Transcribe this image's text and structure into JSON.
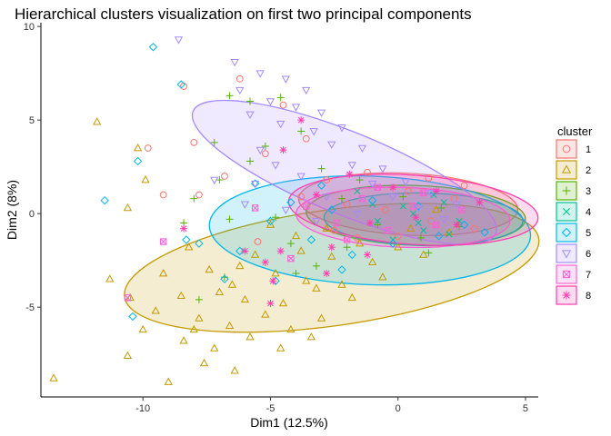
{
  "chart_data": {
    "type": "scatter",
    "title": "Hierarchical clusters visualization on first two principal components",
    "xlabel": "Dim1 (12.5%)",
    "ylabel": "Dim2 (8%)",
    "xlim": [
      -14,
      5.5
    ],
    "ylim": [
      -9.8,
      10.2
    ],
    "x_ticks": [
      -10,
      -5,
      0,
      5
    ],
    "y_ticks": [
      -5,
      0,
      5,
      10
    ],
    "x_tick_labels": [
      "-10",
      "-5",
      "0",
      "5"
    ],
    "y_tick_labels": [
      "-5",
      "0",
      "5",
      "10"
    ],
    "grid": false,
    "legend": {
      "title": "cluster",
      "position": "right"
    },
    "series": [
      {
        "name": "1",
        "color": "#F8766D",
        "marker": "circle",
        "ellipse": {
          "cx": 0.4,
          "cy": 0.5,
          "rx": 4.3,
          "ry": 1.65,
          "angle": -3
        },
        "points": [
          [
            -8.4,
            6.8
          ],
          [
            -6.2,
            7.2
          ],
          [
            -8.0,
            3.8
          ],
          [
            -7.8,
            1.0
          ],
          [
            -5.2,
            3.2
          ],
          [
            -4.5,
            5.8
          ],
          [
            -3.6,
            4.0
          ],
          [
            -2.8,
            1.8
          ],
          [
            -2.0,
            0.5
          ],
          [
            -1.2,
            2.2
          ],
          [
            -0.5,
            0.2
          ],
          [
            0.4,
            1.2
          ],
          [
            1.3,
            -0.4
          ],
          [
            2.2,
            0.8
          ],
          [
            3.0,
            -0.8
          ],
          [
            -2.5,
            -0.9
          ],
          [
            -1.6,
            -1.3
          ],
          [
            0.0,
            -1.2
          ],
          [
            1.2,
            1.9
          ],
          [
            2.6,
            1.5
          ],
          [
            -3.8,
            0.9
          ],
          [
            -9.2,
            1.0
          ],
          [
            -9.8,
            3.5
          ],
          [
            -6.8,
            2.0
          ],
          [
            -5.5,
            -1.5
          ]
        ]
      },
      {
        "name": "2",
        "color": "#C49A00",
        "marker": "triangle",
        "ellipse": {
          "cx": -2.6,
          "cy": -2.9,
          "rx": 8.2,
          "ry": 3.1,
          "angle": 8
        },
        "points": [
          [
            -11.8,
            4.9
          ],
          [
            -10.2,
            3.5
          ],
          [
            -9.9,
            1.8
          ],
          [
            -10.6,
            0.3
          ],
          [
            -11.3,
            -3.5
          ],
          [
            -10.5,
            -4.5
          ],
          [
            -10.6,
            -7.6
          ],
          [
            -13.5,
            -8.8
          ],
          [
            -9.0,
            -9.0
          ],
          [
            -8.4,
            -6.8
          ],
          [
            -9.5,
            -5.2
          ],
          [
            -8.5,
            -4.4
          ],
          [
            -7.8,
            -5.6
          ],
          [
            -7.2,
            -7.2
          ],
          [
            -6.6,
            -6.0
          ],
          [
            -6.5,
            -3.8
          ],
          [
            -6.0,
            -4.6
          ],
          [
            -5.6,
            -2.2
          ],
          [
            -5.2,
            -5.4
          ],
          [
            -4.8,
            -3.2
          ],
          [
            -4.5,
            -4.8
          ],
          [
            -4.0,
            -1.2
          ],
          [
            -3.6,
            -3.6
          ],
          [
            -3.2,
            -4.0
          ],
          [
            -3.0,
            -5.6
          ],
          [
            -2.6,
            -2.3
          ],
          [
            -2.2,
            -3.8
          ],
          [
            -1.8,
            -4.5
          ],
          [
            -1.5,
            -1.6
          ],
          [
            -1.0,
            -2.6
          ],
          [
            -0.6,
            -3.4
          ],
          [
            0.0,
            -1.8
          ],
          [
            0.5,
            -0.8
          ],
          [
            1.0,
            -2.2
          ],
          [
            1.5,
            0.2
          ],
          [
            2.0,
            -1.0
          ],
          [
            -7.0,
            -4.2
          ],
          [
            -8.0,
            -6.2
          ],
          [
            -5.8,
            -6.6
          ],
          [
            -6.2,
            -2.8
          ],
          [
            -4.2,
            -6.2
          ],
          [
            -3.8,
            -2.0
          ],
          [
            -2.8,
            -0.8
          ],
          [
            -7.4,
            -3.0
          ],
          [
            -8.2,
            -1.8
          ],
          [
            -5.0,
            -0.6
          ],
          [
            -9.2,
            -3.2
          ],
          [
            -10.0,
            -6.2
          ],
          [
            -7.6,
            -8.0
          ],
          [
            -6.4,
            -8.4
          ],
          [
            -4.6,
            -7.2
          ],
          [
            -3.4,
            -6.6
          ]
        ]
      },
      {
        "name": "3",
        "color": "#53B400",
        "marker": "plus",
        "ellipse": {
          "cx": 0.7,
          "cy": -0.1,
          "rx": 4.3,
          "ry": 1.6,
          "angle": -2
        },
        "points": [
          [
            -6.6,
            6.3
          ],
          [
            -5.8,
            6.0
          ],
          [
            -7.2,
            3.8
          ],
          [
            -7.0,
            1.8
          ],
          [
            -8.0,
            0.8
          ],
          [
            -6.6,
            -0.3
          ],
          [
            -5.8,
            2.8
          ],
          [
            -5.2,
            3.6
          ],
          [
            -4.6,
            6.2
          ],
          [
            -3.8,
            4.4
          ],
          [
            -3.0,
            2.4
          ],
          [
            -2.2,
            0.8
          ],
          [
            -1.5,
            1.8
          ],
          [
            -0.8,
            -0.6
          ],
          [
            0.2,
            0.9
          ],
          [
            0.9,
            -1.3
          ],
          [
            1.7,
            0.3
          ],
          [
            2.4,
            -0.7
          ],
          [
            -4.0,
            -3.2
          ],
          [
            -4.2,
            -1.6
          ],
          [
            -3.2,
            -2.8
          ],
          [
            -7.8,
            -4.6
          ],
          [
            -6.8,
            -3.4
          ],
          [
            -2.0,
            -1.8
          ],
          [
            1.2,
            -2.1
          ],
          [
            -8.4,
            -0.5
          ],
          [
            -4.8,
            -0.2
          ]
        ]
      },
      {
        "name": "4",
        "color": "#00C094",
        "marker": "x",
        "ellipse": {
          "cx": 1.0,
          "cy": -0.3,
          "rx": 3.9,
          "ry": 1.4,
          "angle": -1
        },
        "points": [
          [
            -1.6,
            1.2
          ],
          [
            -0.8,
            -0.4
          ],
          [
            0.2,
            0.4
          ],
          [
            1.0,
            -0.9
          ],
          [
            1.8,
            0.6
          ],
          [
            2.4,
            -0.4
          ],
          [
            -0.2,
            -1.4
          ],
          [
            1.4,
            1.0
          ],
          [
            0.6,
            0.0
          ],
          [
            2.0,
            -1.1
          ],
          [
            -1.0,
            0.5
          ],
          [
            0.8,
            -0.5
          ]
        ]
      },
      {
        "name": "5",
        "color": "#00B6EB",
        "marker": "diamond",
        "ellipse": {
          "cx": -1.1,
          "cy": -0.9,
          "rx": 6.3,
          "ry": 2.9,
          "angle": -2
        },
        "points": [
          [
            -9.6,
            8.9
          ],
          [
            -8.5,
            6.9
          ],
          [
            -10.2,
            2.8
          ],
          [
            -11.5,
            0.7
          ],
          [
            -10.4,
            -5.5
          ],
          [
            -8.3,
            -1.4
          ],
          [
            -7.8,
            -1.6
          ],
          [
            -6.2,
            -2.0
          ],
          [
            -5.0,
            -0.4
          ],
          [
            -4.2,
            0.6
          ],
          [
            -3.4,
            -1.4
          ],
          [
            -2.6,
            0.2
          ],
          [
            -1.8,
            -2.2
          ],
          [
            -1.0,
            0.7
          ],
          [
            -0.2,
            -1.6
          ],
          [
            0.8,
            0.4
          ],
          [
            1.6,
            -1.2
          ],
          [
            2.6,
            -0.6
          ],
          [
            3.4,
            -1.0
          ],
          [
            -5.6,
            1.6
          ],
          [
            -3.0,
            1.5
          ],
          [
            -6.8,
            -3.5
          ],
          [
            -4.8,
            -3.6
          ],
          [
            -2.2,
            -3.0
          ]
        ]
      },
      {
        "name": "6",
        "color": "#A58AFF",
        "marker": "triangle-down",
        "ellipse": {
          "cx": -2.1,
          "cy": 2.2,
          "rx": 6.4,
          "ry": 2.2,
          "angle": -22
        },
        "points": [
          [
            -8.6,
            9.3
          ],
          [
            -6.4,
            8.1
          ],
          [
            -6.2,
            6.6
          ],
          [
            -5.8,
            5.3
          ],
          [
            -5.4,
            7.5
          ],
          [
            -5.0,
            6.0
          ],
          [
            -4.6,
            4.8
          ],
          [
            -4.4,
            7.2
          ],
          [
            -4.0,
            5.7
          ],
          [
            -3.6,
            6.6
          ],
          [
            -3.3,
            4.4
          ],
          [
            -3.0,
            5.4
          ],
          [
            -2.6,
            3.7
          ],
          [
            -2.2,
            4.6
          ],
          [
            -1.8,
            2.6
          ],
          [
            -1.4,
            3.5
          ],
          [
            -1.0,
            1.6
          ],
          [
            -0.6,
            2.4
          ],
          [
            -0.2,
            0.9
          ],
          [
            0.3,
            1.7
          ],
          [
            0.8,
            0.3
          ],
          [
            1.3,
            1.1
          ],
          [
            1.8,
            -0.3
          ],
          [
            2.3,
            0.5
          ],
          [
            -5.4,
            3.4
          ],
          [
            -4.8,
            2.6
          ],
          [
            -3.8,
            2.0
          ],
          [
            -2.8,
            0.9
          ],
          [
            -5.6,
            1.6
          ],
          [
            -6.0,
            0.5
          ],
          [
            -4.4,
            0.2
          ],
          [
            -3.2,
            -0.4
          ],
          [
            -7.2,
            1.8
          ],
          [
            -1.6,
            0.0
          ]
        ]
      },
      {
        "name": "7",
        "color": "#FB61D7",
        "marker": "square-x",
        "ellipse": {
          "cx": 0.2,
          "cy": -0.2,
          "rx": 4.2,
          "ry": 1.6,
          "angle": -2
        },
        "points": [
          [
            -10.6,
            -4.5
          ],
          [
            -9.2,
            -1.5
          ],
          [
            -5.6,
            0.3
          ],
          [
            -4.2,
            -2.4
          ],
          [
            -3.6,
            0.4
          ],
          [
            -2.4,
            -0.5
          ],
          [
            -1.4,
            0.8
          ],
          [
            -0.4,
            -0.9
          ],
          [
            0.6,
            0.4
          ],
          [
            1.5,
            -0.6
          ],
          [
            2.5,
            0.2
          ],
          [
            -2.0,
            -1.4
          ],
          [
            -0.8,
            1.4
          ],
          [
            1.0,
            1.1
          ]
        ]
      },
      {
        "name": "8",
        "color": "#FF3EAE",
        "marker": "star",
        "ellipse": {
          "cx": 0.6,
          "cy": 0.2,
          "rx": 4.9,
          "ry": 1.85,
          "angle": -4
        },
        "points": [
          [
            -8.4,
            -0.8
          ],
          [
            -5.2,
            -2.6
          ],
          [
            -4.5,
            3.4
          ],
          [
            -3.8,
            5.0
          ],
          [
            -3.2,
            1.0
          ],
          [
            -2.6,
            -1.8
          ],
          [
            -1.9,
            2.1
          ],
          [
            -1.1,
            -0.5
          ],
          [
            -0.2,
            1.4
          ],
          [
            0.7,
            -0.2
          ],
          [
            1.5,
            1.2
          ],
          [
            2.3,
            -0.6
          ],
          [
            3.2,
            0.6
          ],
          [
            -4.9,
            -3.6
          ],
          [
            -2.8,
            -3.2
          ],
          [
            -1.2,
            -2.2
          ],
          [
            -4.6,
            -2.0
          ],
          [
            -6.0,
            -2.0
          ],
          [
            -5.0,
            -4.8
          ]
        ]
      }
    ]
  }
}
